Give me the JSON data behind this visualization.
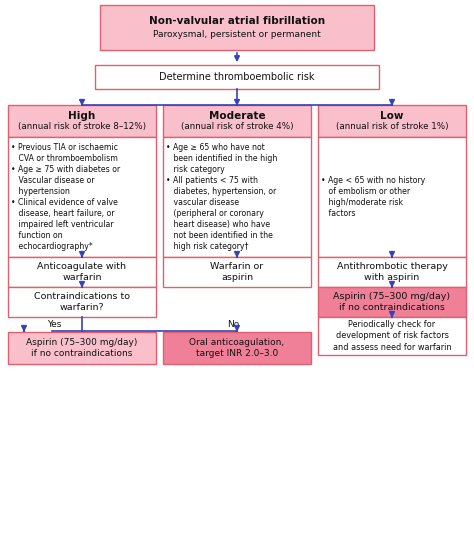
{
  "bg_color": "#ffffff",
  "pink_fill": "#f9c0cc",
  "pink_dark_fill": "#f08098",
  "white_fill": "#ffffff",
  "border_color": "#e06070",
  "arrow_color": "#3344bb",
  "text_color": "#111111",
  "box_top_title_bold": "Non-valvular atrial fibrillation",
  "box_top_title_normal": "Paroxysmal, persistent or permanent",
  "box_risk_title": "Determine thromboembolic risk",
  "col_high_title_bold": "High",
  "col_high_title_normal": "(annual risk of stroke 8–12%)",
  "col_mod_title_bold": "Moderate",
  "col_mod_title_normal": "(annual risk of stroke 4%)",
  "col_low_title_bold": "Low",
  "col_low_title_normal": "(annual risk of stroke 1%)",
  "col_high_bullets": "• Previous TIA or ischaemic\n   CVA or thromboembolism\n• Age ≥ 75 with diabetes or\n   Vascular disease or\n   hypertension\n• Clinical evidence of valve\n   disease, heart failure, or\n   impaired left ventricular\n   function on\n   echocardiography*",
  "col_mod_bullets": "• Age ≥ 65 who have not\n   been identified in the high\n   risk category\n• All patients < 75 with\n   diabetes, hypertension, or\n   vascular disease\n   (peripheral or coronary\n   heart disease) who have\n   not been identified in the\n   high risk category†",
  "col_low_bullets": "• Age < 65 with no history\n   of embolism or other\n   high/moderate risk\n   factors",
  "box_high_rx": "Anticoagulate with\nwarfarin",
  "box_mod_rx": "Warfarin or\naspirin",
  "box_low_rx": "Antithrombotic therapy\nwith aspirin",
  "box_high_q": "Contraindications to\nwarfarin?",
  "yes_label": "Yes",
  "no_label": "No",
  "box_high_yes": "Aspirin (75–300 mg/day)\nif no contraindications",
  "box_high_no": "Oral anticoagulation,\ntarget INR 2.0–3.0",
  "box_low_aspirin": "Aspirin (75–300 mg/day)\nif no contraindications",
  "box_low_periodic": "Periodically check for\ndevelopment of risk factors\nand assess need for warfarin"
}
